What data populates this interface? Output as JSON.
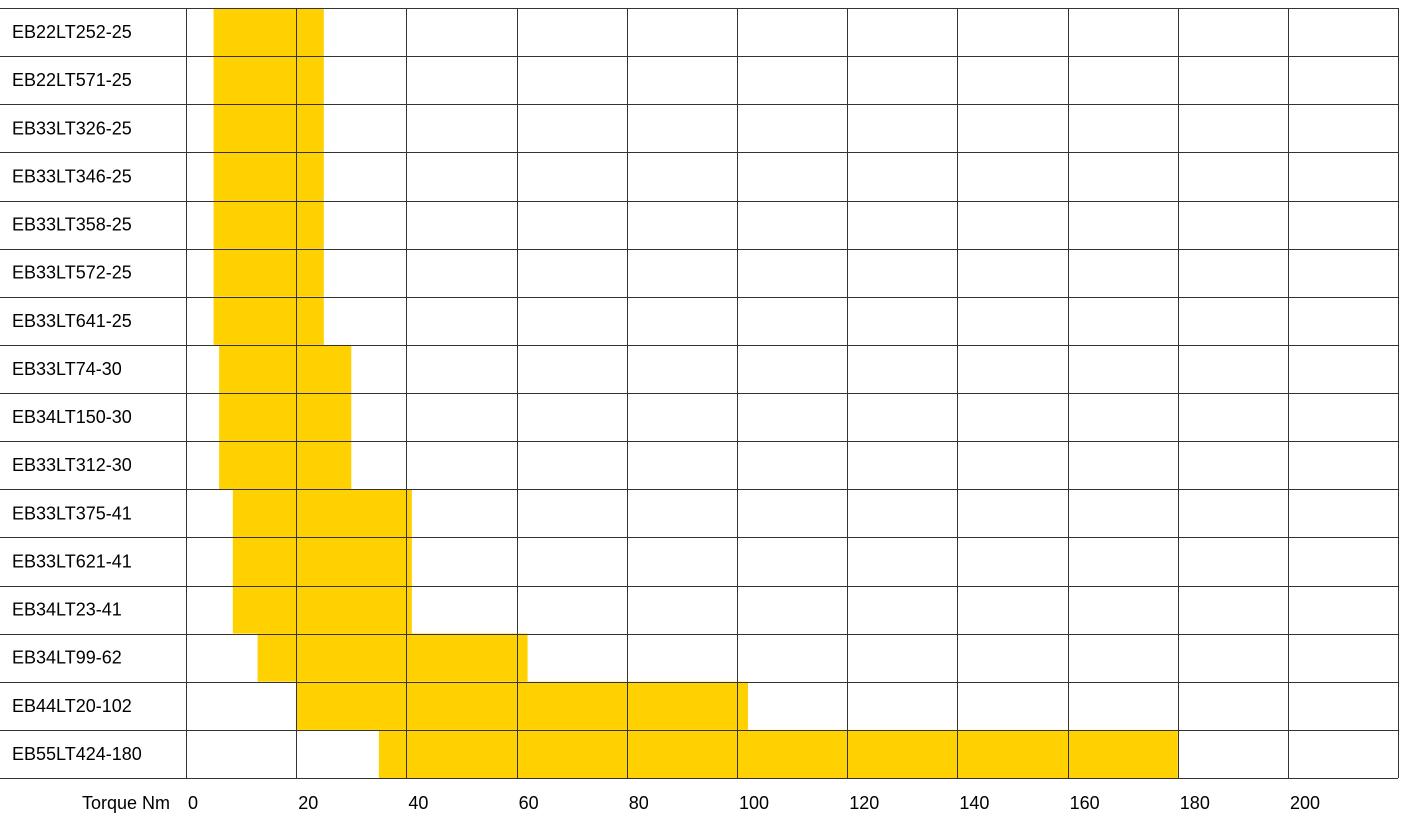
{
  "chart_data": {
    "type": "bar",
    "orientation": "horizontal",
    "xlabel": "Torque Nm",
    "xlim": [
      0,
      220
    ],
    "x_ticks": [
      0,
      20,
      40,
      60,
      80,
      100,
      120,
      140,
      160,
      180,
      200
    ],
    "bar_color": "#FFD100",
    "grid": true,
    "rows": [
      {
        "label": "EB22LT252-25",
        "start": 5,
        "end": 25
      },
      {
        "label": "EB22LT571-25",
        "start": 5,
        "end": 25
      },
      {
        "label": "EB33LT326-25",
        "start": 5,
        "end": 25
      },
      {
        "label": "EB33LT346-25",
        "start": 5,
        "end": 25
      },
      {
        "label": "EB33LT358-25",
        "start": 5,
        "end": 25
      },
      {
        "label": "EB33LT572-25",
        "start": 5,
        "end": 25
      },
      {
        "label": "EB33LT641-25",
        "start": 5,
        "end": 25
      },
      {
        "label": "EB33LT74-30",
        "start": 6,
        "end": 30
      },
      {
        "label": "EB34LT150-30",
        "start": 6,
        "end": 30
      },
      {
        "label": "EB33LT312-30",
        "start": 6,
        "end": 30
      },
      {
        "label": "EB33LT375-41",
        "start": 8.5,
        "end": 41
      },
      {
        "label": "EB33LT621-41",
        "start": 8.5,
        "end": 41
      },
      {
        "label": "EB34LT23-41",
        "start": 8.5,
        "end": 41
      },
      {
        "label": "EB34LT99-62",
        "start": 13,
        "end": 62
      },
      {
        "label": "EB44LT20-102",
        "start": 20,
        "end": 102
      },
      {
        "label": "EB55LT424-180",
        "start": 35,
        "end": 180
      }
    ]
  }
}
